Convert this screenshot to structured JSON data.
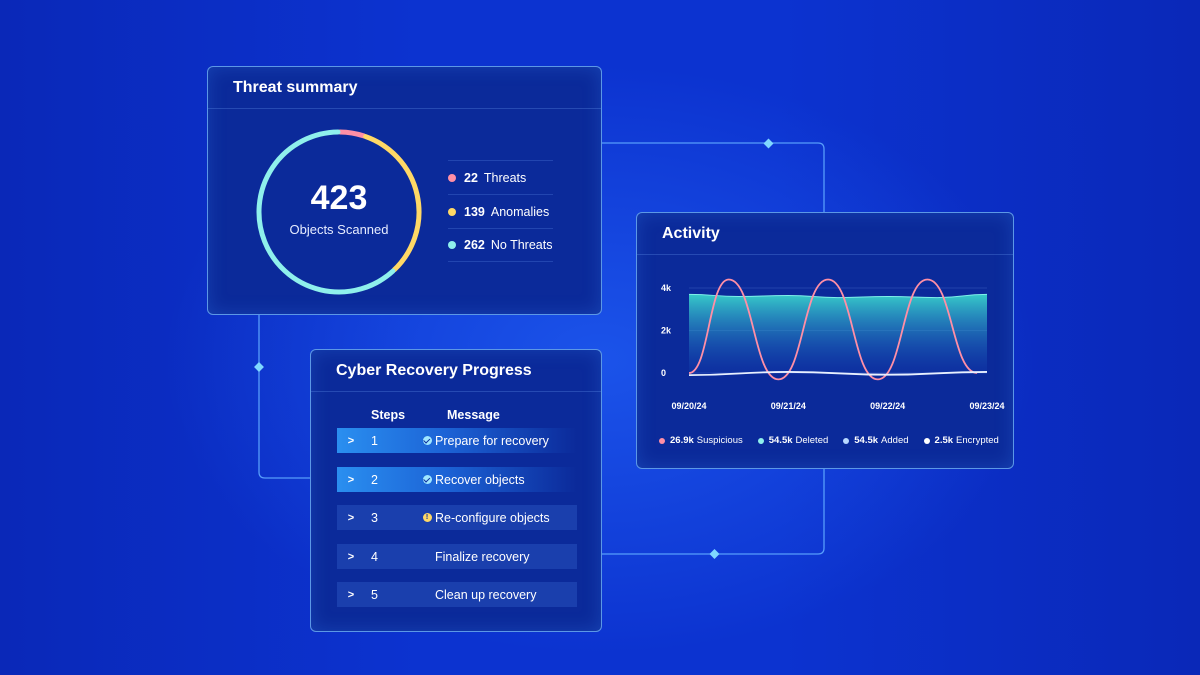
{
  "threat_summary": {
    "title": "Threat summary",
    "total": "423",
    "total_label": "Objects Scanned",
    "breakdown": [
      {
        "count": "22",
        "label": "Threats",
        "color": "#ff8fa6",
        "value": 22
      },
      {
        "count": "139",
        "label": "Anomalies",
        "color": "#ffd866",
        "value": 139
      },
      {
        "count": "262",
        "label": "No Threats",
        "color": "#8ff0ec",
        "value": 262
      }
    ]
  },
  "recovery": {
    "title": "Cyber Recovery Progress",
    "col_steps": "Steps",
    "col_message": "Message",
    "steps": [
      {
        "num": "1",
        "message": "Prepare for recovery",
        "status": "done"
      },
      {
        "num": "2",
        "message": "Recover objects",
        "status": "done"
      },
      {
        "num": "3",
        "message": "Re-configure objects",
        "status": "warning"
      },
      {
        "num": "4",
        "message": "Finalize recovery",
        "status": "pending"
      },
      {
        "num": "5",
        "message": "Clean up recovery",
        "status": "pending"
      }
    ]
  },
  "activity": {
    "title": "Activity",
    "legend": [
      {
        "value": "26.9k",
        "label": "Suspicious",
        "color": "#ff8fa6"
      },
      {
        "value": "54.5k",
        "label": "Deleted",
        "color": "#8ff0ec"
      },
      {
        "value": "54.5k",
        "label": "Added",
        "color": "#b8d8ff"
      },
      {
        "value": "2.5k",
        "label": "Encrypted",
        "color": "#ffffff"
      }
    ]
  },
  "chart_data": {
    "type": "area",
    "x": [
      "09/20/24",
      "09/21/24",
      "09/22/24",
      "09/23/24"
    ],
    "y_ticks": [
      "4k",
      "2k",
      "0"
    ],
    "ylim": [
      0,
      4000
    ],
    "grid": true,
    "series": [
      {
        "name": "Deleted",
        "kind": "area",
        "color": "#3fd6d0",
        "points": [
          [
            0,
            3700
          ],
          [
            0.5,
            3600
          ],
          [
            1,
            3650
          ],
          [
            1.5,
            3550
          ],
          [
            2,
            3600
          ],
          [
            2.5,
            3550
          ],
          [
            3,
            3700
          ]
        ]
      },
      {
        "name": "Suspicious",
        "kind": "line",
        "color": "#ff8fa6",
        "points": [
          [
            0,
            0
          ],
          [
            0.4,
            4400
          ],
          [
            0.9,
            -300
          ],
          [
            1.4,
            4400
          ],
          [
            1.9,
            -300
          ],
          [
            2.4,
            4400
          ],
          [
            2.9,
            0
          ]
        ]
      },
      {
        "name": "Encrypted",
        "kind": "line",
        "color": "#e8f0ff",
        "points": [
          [
            0,
            -100
          ],
          [
            1,
            50
          ],
          [
            2,
            -80
          ],
          [
            3,
            50
          ]
        ]
      }
    ]
  }
}
